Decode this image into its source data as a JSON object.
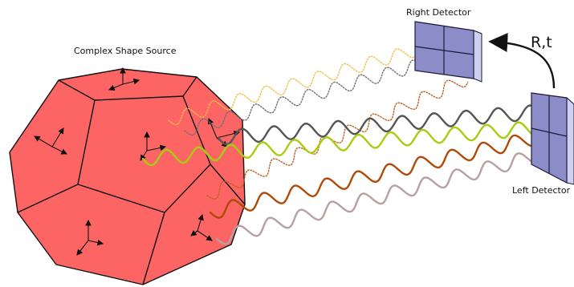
{
  "labels": {
    "source": "Complex Shape Source",
    "right_detector": "Right Detector",
    "left_detector": "Left Detector",
    "transform": "R,t"
  },
  "colors": {
    "polyhedron_fill": "#fd6464",
    "polyhedron_edge": "#111111",
    "detector_front": "#8c8cc8",
    "detector_side": "#cfcff0",
    "detector_grid": "#1b1b3a",
    "wave_yellow": "#f0c048",
    "wave_darkgray_dotted": "#707070",
    "wave_darkgray": "#555555",
    "wave_lime": "#a8cc10",
    "wave_brown": "#b04a08",
    "wave_rose": "#b8a0a0",
    "arrow": "#111111"
  },
  "waves": [
    {
      "name": "wave-yellow-dotted",
      "color": "#f0c048",
      "style": "dotted",
      "target": "Right Detector"
    },
    {
      "name": "wave-gray-dotted",
      "color": "#707070",
      "style": "dotted",
      "target": "Right Detector"
    },
    {
      "name": "wave-brown-dotted",
      "color": "#c06020",
      "style": "dotted",
      "target": "Right Detector"
    },
    {
      "name": "wave-darkgray",
      "color": "#555555",
      "style": "solid",
      "target": "Left Detector"
    },
    {
      "name": "wave-lime",
      "color": "#a8cc10",
      "style": "solid",
      "target": "Left Detector"
    },
    {
      "name": "wave-brown",
      "color": "#b04a08",
      "style": "solid",
      "target": "Left Detector"
    },
    {
      "name": "wave-rose",
      "color": "#b8a0a0",
      "style": "solid",
      "target": "Left Detector"
    }
  ]
}
